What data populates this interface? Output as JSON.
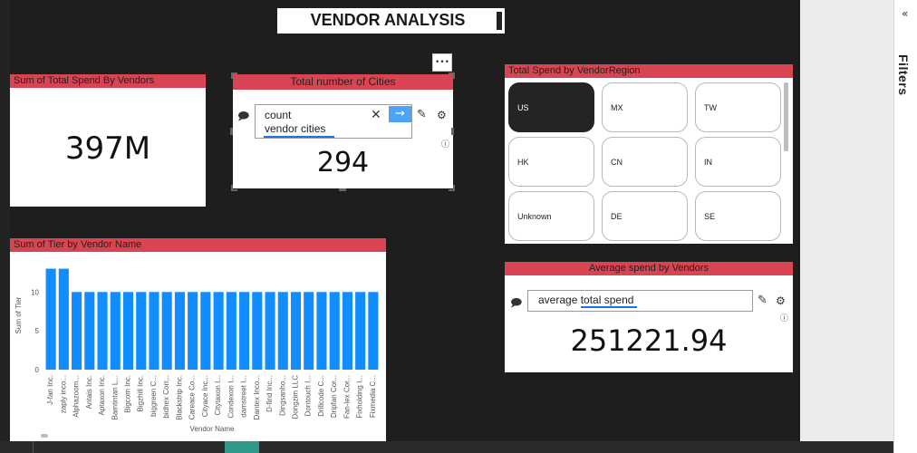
{
  "title": "VENDOR ANALYSIS",
  "filters_label": "Filters",
  "more_options": "•••",
  "card_total_spend": {
    "header": "Sum of Total Spend By Vendors",
    "value": "397M"
  },
  "card_cities": {
    "header": "Total number of Cities",
    "qa_line1": "count",
    "qa_line2": "vendor cities",
    "value": "294"
  },
  "slicer_region": {
    "header": "Total Spend by VendorRegion",
    "items": [
      "US",
      "MX",
      "TW",
      "HK",
      "CN",
      "IN",
      "Unknown",
      "DE",
      "SE"
    ],
    "selected": "US"
  },
  "card_avg": {
    "header": "Average spend by Vendors",
    "qa_text": "average total spend",
    "value": "251221.94"
  },
  "chart_panel": {
    "header": "Sum of Tier by Vendor Name"
  },
  "chart_data": {
    "type": "bar",
    "title": "Sum of Tier by Vendor Name",
    "xlabel": "Vendor Name",
    "ylabel": "Sum of Tier",
    "ylim": [
      0,
      14
    ],
    "yticks": [
      0,
      5,
      10
    ],
    "bar_color": "#118dff",
    "categories": [
      "J-fan Inc.",
      "zaply inco...",
      "Alphazoom...",
      "Antais Inc.",
      "Aptaxon Inc.",
      "Bamtintan L...",
      "Bigcom Inc.",
      "Bigzhill Inc.",
      "biggreen C...",
      "bidhex Corr...",
      "Blackstrip Inc.",
      "Careace Co...",
      "Cityace Inc...",
      "Citytaxon I...",
      "Condexon I...",
      "damstreet I...",
      "Dantex Inco...",
      "D-find Inc...",
      "Dingsanho...",
      "Dongzim LLC",
      "Dontouch I...",
      "Drillcode C...",
      "Dripfan Cor...",
      "Fan-lex Cor...",
      "Fixholding I...",
      "Fixmedia C..."
    ],
    "values": [
      13,
      13,
      10,
      10,
      10,
      10,
      10,
      10,
      10,
      10,
      10,
      10,
      10,
      10,
      10,
      10,
      10,
      10,
      10,
      10,
      10,
      10,
      10,
      10,
      10,
      10
    ]
  },
  "colors": {
    "header_red": "#d94452",
    "selected_slicer": "#252423",
    "accent_blue": "#1a73e8",
    "report_bg": "#1e1e1e"
  }
}
